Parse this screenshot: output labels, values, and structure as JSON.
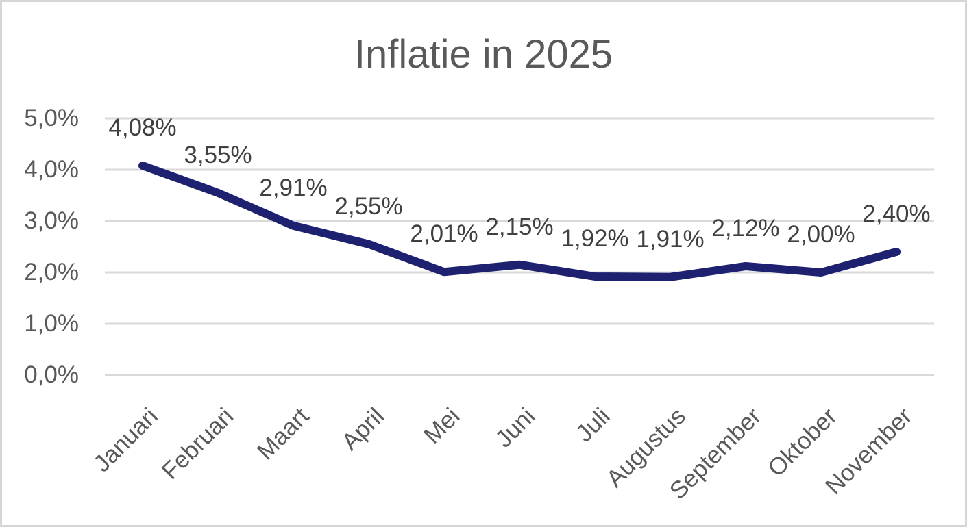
{
  "chart_data": {
    "type": "line",
    "title": "Inflatie in 2025",
    "categories": [
      "Januari",
      "Februari",
      "Maart",
      "April",
      "Mei",
      "Juni",
      "Juli",
      "Augustus",
      "September",
      "Oktober",
      "November"
    ],
    "series": [
      {
        "values": [
          4.08,
          3.55,
          2.91,
          2.55,
          2.01,
          2.15,
          1.92,
          1.91,
          2.12,
          2.0,
          2.4
        ],
        "data_labels": [
          "4,08%",
          "3,55%",
          "2,91%",
          "2,55%",
          "2,01%",
          "2,15%",
          "1,92%",
          "1,91%",
          "2,12%",
          "2,00%",
          "2,40%"
        ]
      }
    ],
    "y_tick_labels": [
      "0,0%",
      "1,0%",
      "2,0%",
      "3,0%",
      "4,0%",
      "5,0%"
    ],
    "ylim": [
      0,
      5
    ],
    "xlabel": "",
    "ylabel": "",
    "grid": true,
    "legend": "none",
    "data_label_position": "above"
  },
  "colors": {
    "line": "#1E2170",
    "gridline": "#D9D9D9",
    "axis_text": "#595959",
    "data_label_text": "#404040",
    "title_text": "#595959",
    "border": "#D6D6D6",
    "background": "#FFFFFF"
  }
}
